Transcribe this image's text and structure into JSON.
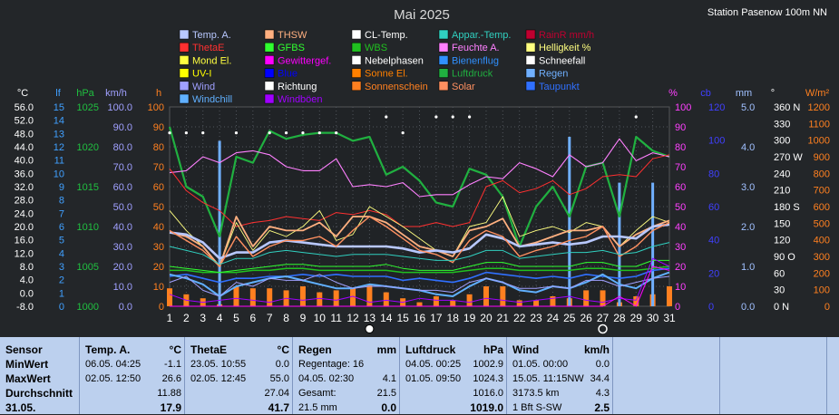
{
  "chart_data": {
    "type": "line",
    "title": "Mai 2025",
    "station": "Station Pasenow 100m NN",
    "x": [
      1,
      2,
      3,
      4,
      5,
      6,
      7,
      8,
      9,
      10,
      11,
      12,
      13,
      14,
      15,
      16,
      17,
      18,
      19,
      20,
      21,
      22,
      23,
      24,
      25,
      26,
      27,
      28,
      29,
      30,
      31
    ],
    "legend": [
      {
        "name": "Temp. A.",
        "color": "#b8c8ff"
      },
      {
        "name": "THSW",
        "color": "#ffb080"
      },
      {
        "name": "CL-Temp.",
        "color": "#ffffff"
      },
      {
        "name": "Appar.-Temp.",
        "color": "#30d0c0"
      },
      {
        "name": "RainR mm/h",
        "color": "#c00030"
      },
      {
        "name": "ThetaE",
        "color": "#ff3030"
      },
      {
        "name": "GFBS",
        "color": "#30ff30"
      },
      {
        "name": "WBS",
        "color": "#20c020"
      },
      {
        "name": "Feuchte A.",
        "color": "#ff80ff"
      },
      {
        "name": "Helligkeit %",
        "color": "#ffff80"
      },
      {
        "name": "Mond El.",
        "color": "#ffff40"
      },
      {
        "name": "Gewittergef.",
        "color": "#ff00ff"
      },
      {
        "name": "Nebelphasen",
        "color": "#ffffff"
      },
      {
        "name": "Bienenflug",
        "color": "#3090ff"
      },
      {
        "name": "Schneefall",
        "color": "#ffffff"
      },
      {
        "name": "UV-I",
        "color": "#ffff00"
      },
      {
        "name": "Blue",
        "color": "#0000ff"
      },
      {
        "name": "Sonne El.",
        "color": "#ff8000"
      },
      {
        "name": "Luftdruck",
        "color": "#20b040"
      },
      {
        "name": "Regen",
        "color": "#70b0ff"
      },
      {
        "name": "Wind",
        "color": "#a0a0ff"
      },
      {
        "name": "Richtung",
        "color": "#ffffff"
      },
      {
        "name": "Sonnenschein",
        "color": "#ff8020"
      },
      {
        "name": "Solar",
        "color": "#ff9060"
      },
      {
        "name": "Taupunkt",
        "color": "#3070ff"
      },
      {
        "name": "Windchill",
        "color": "#60b0ff"
      },
      {
        "name": "Windböen",
        "color": "#a000ff"
      }
    ],
    "axis_units": [
      {
        "label": "°C",
        "color": "#ffffff"
      },
      {
        "label": "lf",
        "color": "#40a0ff"
      },
      {
        "label": "hPa",
        "color": "#20c040"
      },
      {
        "label": "km/h",
        "color": "#a0a0ff"
      },
      {
        "label": "h",
        "color": "#ff8020"
      },
      {
        "label": "%",
        "color": "#ff40ff"
      },
      {
        "label": "cb",
        "color": "#4040ff"
      },
      {
        "label": "mm",
        "color": "#a0c0ff"
      },
      {
        "label": "°",
        "color": "#ffffff"
      },
      {
        "label": "W/m²",
        "color": "#ff8020"
      }
    ],
    "axes": {
      "temp": [
        "56.0",
        "52.0",
        "48.0",
        "44.0",
        "40.0",
        "36.0",
        "32.0",
        "28.0",
        "24.0",
        "20.0",
        "16.0",
        "12.0",
        "8.0",
        "4.0",
        "0.0",
        "-8.0"
      ],
      "lf": [
        "15",
        "14",
        "13",
        "12",
        "11",
        "10",
        "9",
        "8",
        "7",
        "6",
        "5",
        "4",
        "3",
        "2",
        "1",
        "0"
      ],
      "hpa": [
        "1025",
        "1020",
        "1015",
        "1010",
        "1005",
        "1000"
      ],
      "kmh": [
        "100.0",
        "90.0",
        "80.0",
        "70.0",
        "60.0",
        "50.0",
        "40.0",
        "30.0",
        "20.0",
        "10.0",
        "0.0"
      ],
      "h": [
        "100",
        "90",
        "80",
        "70",
        "60",
        "50",
        "40",
        "30",
        "20",
        "10",
        "0"
      ],
      "pct": [
        "100",
        "90",
        "80",
        "70",
        "60",
        "50",
        "40",
        "30",
        "20",
        "10",
        "0"
      ],
      "cb": [
        "120",
        "100",
        "80",
        "60",
        "40",
        "20",
        "0"
      ],
      "mm": [
        "5.0",
        "4.0",
        "3.0",
        "2.0",
        "1.0",
        "0.0"
      ],
      "deg": [
        "360 N",
        "330",
        "300",
        "270 W",
        "240",
        "210",
        "180 S",
        "150",
        "120",
        "90 O",
        "60",
        "30",
        "0 N"
      ],
      "wm2": [
        "1200",
        "1100",
        "1000",
        "900",
        "800",
        "700",
        "600",
        "500",
        "400",
        "300",
        "200",
        "100",
        "0"
      ]
    },
    "series": [
      {
        "name": "Luftdruck",
        "color": "#20b040",
        "width": 2.2,
        "values": [
          90,
          60,
          55,
          35,
          75,
          72,
          88,
          84,
          86,
          87,
          87,
          83,
          85,
          66,
          70,
          63,
          52,
          50,
          69,
          66,
          55,
          30,
          50,
          60,
          45,
          70,
          72,
          45,
          85,
          78,
          75
        ]
      },
      {
        "name": "Feuchte A.",
        "color": "#ff80ff",
        "width": 1.1,
        "values": [
          67,
          68,
          75,
          72,
          77,
          78,
          76,
          70,
          68,
          68,
          74,
          60,
          61,
          60,
          62,
          55,
          56,
          56,
          61,
          65,
          64,
          72,
          69,
          65,
          76,
          70,
          72,
          84,
          73,
          77,
          75
        ]
      },
      {
        "name": "ThetaE",
        "color": "#ff3030",
        "width": 1,
        "values": [
          69,
          58,
          52,
          48,
          40,
          42,
          43,
          45,
          44,
          43,
          47,
          46,
          48,
          46,
          40,
          40,
          42,
          40,
          42,
          60,
          63,
          57,
          59,
          63,
          56,
          59,
          65,
          66,
          65,
          74,
          76
        ]
      },
      {
        "name": "Helligkeit %",
        "color": "#ffff80",
        "width": 0.9,
        "values": [
          48,
          38,
          30,
          20,
          42,
          28,
          38,
          35,
          40,
          48,
          33,
          36,
          50,
          45,
          40,
          34,
          28,
          25,
          40,
          42,
          55,
          35,
          38,
          40,
          37,
          42,
          40,
          30,
          38,
          45,
          42
        ]
      },
      {
        "name": "THSW",
        "color": "#ffb080",
        "width": 1.8,
        "values": [
          37,
          35,
          30,
          20,
          45,
          30,
          40,
          38,
          38,
          42,
          35,
          45,
          45,
          42,
          36,
          30,
          28,
          25,
          38,
          40,
          44,
          30,
          32,
          35,
          38,
          38,
          40,
          30,
          36,
          40,
          43
        ]
      },
      {
        "name": "Temp. A.",
        "color": "#b8c8ff",
        "width": 2.6,
        "values": [
          37,
          36,
          32,
          24,
          27,
          27,
          32,
          33,
          32,
          31,
          30,
          30,
          30,
          30,
          29,
          27,
          28,
          27,
          29,
          36,
          34,
          30,
          31,
          32,
          31,
          32,
          35,
          35,
          34,
          40,
          41
        ]
      },
      {
        "name": "Solar",
        "color": "#ff9060",
        "width": 1.4,
        "values": [
          38,
          33,
          28,
          20,
          35,
          25,
          30,
          33,
          33,
          35,
          30,
          38,
          45,
          40,
          34,
          28,
          26,
          22,
          33,
          38,
          35,
          25,
          28,
          30,
          33,
          35,
          40,
          25,
          30,
          38,
          42
        ]
      },
      {
        "name": "Appar.-Temp.",
        "color": "#30d0c0",
        "width": 1,
        "values": [
          30,
          28,
          26,
          21,
          24,
          24,
          27,
          28,
          27,
          26,
          25,
          26,
          26,
          26,
          25,
          24,
          23,
          23,
          25,
          28,
          28,
          24,
          25,
          26,
          27,
          27,
          28,
          26,
          27,
          30,
          32
        ]
      },
      {
        "name": "WBS",
        "color": "#20c020",
        "width": 1.5,
        "values": [
          18,
          18,
          17,
          17,
          17,
          18,
          18,
          19,
          19,
          18,
          18,
          18,
          18,
          18,
          17,
          17,
          17,
          17,
          18,
          19,
          19,
          18,
          18,
          18,
          18,
          19,
          19,
          18,
          18,
          19,
          20
        ]
      },
      {
        "name": "GFBS",
        "color": "#30ff30",
        "width": 1,
        "values": [
          20,
          19,
          18,
          17,
          18,
          19,
          20,
          21,
          21,
          20,
          20,
          20,
          20,
          21,
          19,
          18,
          18,
          18,
          20,
          22,
          22,
          20,
          20,
          20,
          20,
          22,
          22,
          20,
          20,
          23,
          23
        ]
      },
      {
        "name": "Taupunkt",
        "color": "#3070ff",
        "width": 1.6,
        "values": [
          15,
          16,
          14,
          12,
          14,
          14,
          15,
          15,
          16,
          15,
          16,
          15,
          15,
          15,
          13,
          14,
          13,
          12,
          14,
          17,
          16,
          15,
          14,
          15,
          14,
          16,
          15,
          14,
          15,
          18,
          19
        ]
      },
      {
        "name": "Windchill",
        "color": "#60b0ff",
        "width": 2,
        "values": [
          16,
          14,
          11,
          5,
          10,
          12,
          14,
          15,
          13,
          11,
          9,
          9,
          11,
          10,
          9,
          8,
          6,
          5,
          10,
          14,
          12,
          8,
          7,
          10,
          9,
          12,
          16,
          11,
          9,
          14,
          17
        ]
      },
      {
        "name": "Wind",
        "color": "#a0a0ff",
        "width": 1,
        "values": [
          12,
          15,
          8,
          5,
          12,
          10,
          14,
          13,
          13,
          16,
          12,
          9,
          10,
          10,
          9,
          8,
          8,
          7,
          12,
          14,
          12,
          9,
          9,
          10,
          9,
          13,
          13,
          10,
          12,
          14,
          15
        ]
      },
      {
        "name": "Windböen",
        "color": "#a000ff",
        "width": 1,
        "values": [
          6,
          3,
          2,
          3,
          4,
          3,
          2,
          4,
          3,
          4,
          3,
          5,
          2,
          3,
          2,
          4,
          3,
          3,
          2,
          4,
          3,
          2,
          3,
          4,
          5,
          3,
          2,
          4,
          3,
          24,
          20
        ]
      },
      {
        "name": "Gewittergef.",
        "color": "#ff00ff",
        "width": 1,
        "values": [
          0,
          0,
          0,
          0,
          0,
          0,
          0,
          0,
          0,
          0,
          0,
          0,
          0,
          0,
          0,
          0,
          0,
          0,
          0,
          0,
          0,
          0,
          0,
          0,
          0,
          0,
          0,
          5,
          0,
          20,
          18
        ]
      }
    ],
    "regen_bars": [
      0,
      0,
      0,
      83,
      0,
      0,
      0,
      0,
      0,
      0,
      0,
      0,
      0,
      0,
      0,
      0,
      0,
      0,
      0,
      0,
      0,
      0,
      0,
      0,
      85,
      0,
      0,
      62,
      0,
      62,
      0
    ],
    "sonnenschein_bars": [
      9,
      6,
      4,
      1,
      10,
      9,
      9,
      8,
      10,
      7,
      8,
      9,
      11,
      7,
      4,
      2,
      5,
      3,
      6,
      10,
      10,
      3,
      3,
      5,
      4,
      8,
      8,
      2,
      5,
      6,
      10
    ],
    "dots_y": [
      87,
      87,
      87,
      null,
      87,
      null,
      87,
      87,
      87,
      87,
      87,
      null,
      null,
      95,
      87,
      null,
      95,
      95,
      95,
      null,
      null,
      null,
      null,
      null,
      null,
      null,
      null,
      null,
      95,
      null,
      null
    ],
    "x_markers": {
      "day13": "full-moon",
      "day27": "new-moon"
    }
  },
  "stats": {
    "date_label": "31.05.",
    "sensor": {
      "title": "Sensor",
      "rows": [
        "MinWert",
        "MaxWert",
        "Durchschnitt"
      ]
    },
    "temp": {
      "title": "Temp. A.",
      "unit": "°C",
      "min_date": "06.05.  04:25",
      "min_val": "-1.1",
      "max_date": "02.05.  12:50",
      "max_val": "26.6",
      "avg": "11.88",
      "cur": "17.9"
    },
    "theta": {
      "title": "ThetaE",
      "unit": "°C",
      "min_date": "23.05.  10:55",
      "min_val": "0.0",
      "max_date": "02.05.  12:45",
      "max_val": "55.0",
      "avg": "27.04",
      "cur": "41.7"
    },
    "regen": {
      "title": "Regen",
      "unit": "mm",
      "days": "Regentage: 16",
      "max_date": "04.05.  02:30",
      "max_val": "4.1",
      "total_lbl": "Gesamt:",
      "total": "21.5",
      "cur_lbl": "21.5 mm",
      "cur": "0.0"
    },
    "luft": {
      "title": "Luftdruck",
      "unit": "hPa",
      "min_date": "04.05.  00:25",
      "min_val": "1002.9",
      "max_date": "01.05.  09:50",
      "max_val": "1024.3",
      "avg": "1016.0",
      "cur": "1019.0"
    },
    "wind": {
      "title": "Wind",
      "unit": "km/h",
      "min_date": "01.05.  00:00",
      "min_val": "0.0",
      "max_date": "15.05.  11:15NW",
      "max_val": "34.4",
      "dist": "3173.5 km",
      "avg": "4.3",
      "cur_lbl": "1 Bft S-SW",
      "cur": "2.5"
    }
  }
}
